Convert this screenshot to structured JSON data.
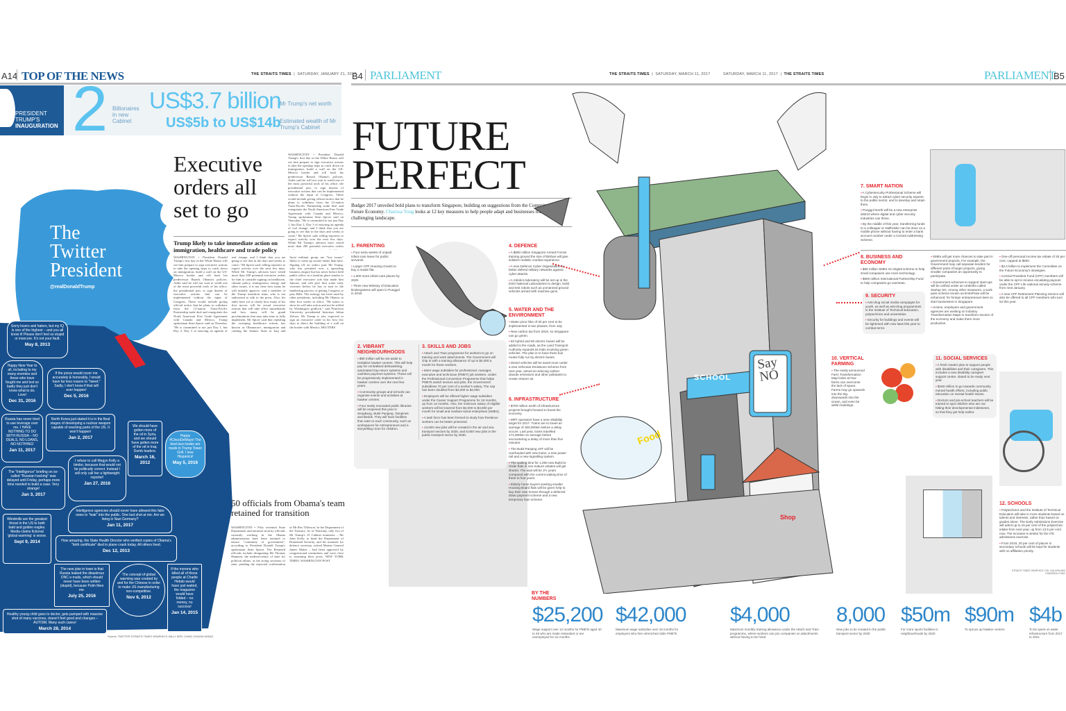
{
  "left_page": {
    "page_number": "A14",
    "section": "TOP OF THE NEWS",
    "paper": "THE STRAITS TIMES",
    "date": "SATURDAY, JANUARY 21, 2017",
    "banner": {
      "tag_line1": "PRESIDENT",
      "tag_line2": "TRUMP'S",
      "tag_line3": "INAUGURATION",
      "big_number": "2",
      "big_number_label": "Billionaires in new Cabinet",
      "stat1": "US$3.7 billion",
      "stat1_label": "Mr Trump's net worth",
      "stat2": "US$5b to US$14b",
      "stat2_label": "Estimated wealth of Mr Trump's Cabinet"
    },
    "graphic": {
      "title_line1": "The",
      "title_line2": "Twitter",
      "title_line3": "President",
      "handle": "@realDonaldTrump",
      "source": "Source: TWITTER  STRAITS TIMES GRAPHICS: BILLY KER, CHNG CHOON HIONG",
      "tweets": [
        {
          "text": "Sorry losers and haters, but my IQ is one of the highest – and you all know it! Please don't feel so stupid or insecure. It's not your fault.",
          "date": "May 8, 2013"
        },
        {
          "text": "Happy New Year to all, including to my many enemies and those who have fought me and lost so badly they just don't know what to do. Love!",
          "date": "Dec 31, 2016"
        },
        {
          "text": "If the press would cover me accurately & honorably, I would have far less reason to \"tweet.\" Sadly, I don't know if that will ever happen!",
          "date": "Dec 5, 2016"
        },
        {
          "text": "Russia has never tried to use leverage over me. I HAVE NOTHING TO DO WITH RUSSIA – NO DEALS, NO LOANS, NO NOTHING!",
          "date": "Jan 11, 2017"
        },
        {
          "text": "North Korea just stated it is in the final stages of developing a nuclear weapon capable of reaching parts of the US. It won't happen!",
          "date": "Jan 2, 2017"
        },
        {
          "text": "We should have gotten more of the oil in Syria, and we should have gotten more of the oil in Iraq. Dumb leaders.",
          "date": "March 16, 2012"
        },
        {
          "text": "Happy #CincoDeMayo! The best taco bowls are made in Trump Tower Grill. I love Hispanics!",
          "date": "May 5, 2016"
        },
        {
          "text": "I refuse to call Megyn Kelly a bimbo, because that would not be politically correct. Instead I will only call her a lightweight reporter!",
          "date": "Jan 27, 2016"
        },
        {
          "text": "The \"Intelligence\" briefing on so-called \"Russian hacking\" was delayed until Friday, perhaps more time needed to build a case. Very strange!",
          "date": "Jan 3, 2017"
        },
        {
          "text": "Intelligence agencies should never have allowed this fake news to \"leak\" into the public. One last shot at me. Are we living in Nazi Germany?",
          "date": "Jan 11, 2017"
        },
        {
          "text": "How amazing, the State Health Director who verified copies of Obama's \"birth certificate\" died in plane crash today. All others lived.",
          "date": "Dec 12, 2013"
        },
        {
          "text": "Windmills are the greatest threat in the US to both bald and golden eagles. Media claims fictional 'global warming' is worse.",
          "date": "Sept 9, 2014"
        },
        {
          "text": "The new joke in town is that Russia leaked the disastrous DNC e-mails, which should never have been written (stupid), because Putin likes me.",
          "date": "July 25, 2016"
        },
        {
          "text": "The concept of global warming was created by and for the Chinese in order to make US manufacturing non-competitive.",
          "date": "Nov 6, 2012"
        },
        {
          "text": "If the morons who killed all of those people at Charlie Hebdo would have just waited, the magazine would have folded – no money, no success!",
          "date": "Jan 14, 2015"
        },
        {
          "text": "Healthy young child goes to doctor, gets pumped with massive shot of many vaccines, doesn't feel good and changes – AUTISM. Many such cases!",
          "date": "March 28, 2014"
        }
      ]
    },
    "article1": {
      "headline": "Executive orders all set to go",
      "subhead": "Trump likely to take immediate action on immigration, healthcare and trade policy",
      "body": "WASHINGTON • President Donald Trump's first day in the White House will see him prepare to sign executive actions to take the opening steps to crack down on immigration, build a wall on the US-Mexico border and roll back his predecessor Barack Obama's policies. Aides said he will not wait to wield one of the most powerful tools of his office, the presidential pen, to sign dozens of executive actions that can be implemented without the input of Congress. These would include giving official notice that he plans to withdraw from the 12-nation Trans-Pacific Partnership trade deal and renegotiate the North American Free Trade Agreement with Canada and Mexico, Trump spokesman Sean Spicer said on Thursday. \"He is committed to not just Day 1, but Day 2, Day 3 of enacting an agenda of real change, and I think that you are going to see that in the days and weeks to come,\" Mr Spicer said, telling reporters to expect activity over the next few days. While Mr Trump's advisers have vetted more than 200 potential executive orders for him to consider signing on healthcare, climate policy, immigration, energy and other issues, it is not clear how many he will initially approve, said a member of the Trump transition team, who is not authorised to talk to the press. Also, his aides have yet to clarify how many of his first moves will be actual executive actions that will take effect immediately and how many will be grand proclamations that may take time to fully implement. Mr Spicer said that repealing the sweeping healthcare reform law known as Obamacare, immigration and curbing the Islamic State in Iraq and Syria militant group are \"key issues\" likely to come up sooner rather than later. Signing off on orders puts Mr Trump, who has presided over a sprawling business empire but has never before held public office, in a familiar place similar to the chief executive role that made him famous, and will give him some early victories before he has to turn to the hambering process of getting Congress to pass Bills. The strategy has been used by other presidents, including Mr Obama, in their first weeks in office. \"He wants to show he will take action and not be stifled by Washington gridlock,\" said Princeton University presidential historian Julian Zelizer. Mr Trump is also expected to sign an executive order in his first few days to direct the building of a wall on the border with Mexico. REUTERS"
    },
    "article2": {
      "headline": "50 officials from Obama's team retained for transition",
      "body": "WASHINGTON • Fifty essential State Department and national security officials currently working in the Obama administration have been retained to ensure \"continuity of government\", according to President Donald Trump's spokesman Sean Spicer. The Retained officials include designating Mr Thomas Shannon, the undersecretary of state for political affairs, as the acting secretary of state, pending the expected confirmation of Mr Rex Tillerson. In the Department of the Treasury. As of Thursday, only two of Mr Trump's 15 Cabinet nominees – Mr John Kelly, to head the Department of Homeland Security, and his nominee for defence secretary, retired Marine General James Mattis – had been approved by congressional committees and were close to assuming their posts. NEW YORK TIMES, WASHINGTON POST"
    }
  },
  "spread": {
    "left_folio": "B4",
    "right_folio": "B5",
    "section": "PARLIAMENT",
    "paper": "THE STRAITS TIMES",
    "date": "SATURDAY, MARCH 11, 2017",
    "headline_line1": "FUTURE",
    "headline_line2": "PERFECT",
    "standfirst_pre": "Budget 2017 unveiled bold plans to transform Singapore, building on suggestions from the Committee on the Future Economy.",
    "standfirst_author": "Charissa Yong",
    "standfirst_post": "looks at 12 key measures to help people adapt and businesses transform in a challenging landscape.",
    "illustration_signs": {
      "say_no": "Say NO",
      "food": "Food",
      "school": "SCHOOL",
      "shop": "Shop"
    },
    "credit": "STRAITS TIMES GRAPHICS: CEL GULAPA AND CHARISSA YONG",
    "sections": {
      "parenting": {
        "title": "1. PARENTING",
        "bullets": [
          "Four extra weeks of unpaid infant-care leave for public servants.",
          "Larger CPF Housing Grants to buy a resale flat.",
          "1,000 more infant-care places by 2020.",
          "Three new Ministry of Education kindergartens will open in Punggol in 2018."
        ]
      },
      "neighbourhoods": {
        "title": "2. VIBRANT NEIGHBOURHOODS",
        "bullets": [
          "$90 million will be set aside to revitalise hawker centres. This will help pay for centralised dishwashing, automated tray-return systems and cashless payment systems. These will be progressively implemented in hawker centres over the next few years.",
          "Community groups and schools can organise events and activities at hawker centres.",
          "Four newly renovated public libraries will be reopened this year in Sengkang, Bukit Panjang, Tampines and Bedok. They will have facilities that cater to each community, such as workspaces for entrepreneurs and a storytelling room for children."
        ]
      },
      "skills": {
        "title": "3. SKILLS AND JOBS",
        "bullets": [
          "Attach and Train programme for workers to go on training and work attachments. The Government will chip in with a training allowance of up to $4,000 a month for these workers.",
          "More wage subsidies for professional, manager, executive and technician (PMET) job seekers. Under the Professional Conversion Programme that helps PMETs switch sectors and jobs, the Government subsidises 70 per cent of a worker's salary. The cap has been doubled from $2,000 to $4,000.",
          "Employers will be offered higher wage subsidies under the Career Support Programme for 18 months, up from 12 months. Also, the minimum salary of eligible workers will be lowered from $4,000 to $3,600 per month for small and medium-sized enterprises (SMEs).",
          "A task force has been formed to study how freelance workers can be better protected.",
          "13,000 new jobs will be created in the air and sea transport sectors by 2025, and 8,000 new jobs in the public transport sector by 2030."
        ]
      },
      "defence": {
        "title": "4. DEFENCE",
        "bullets": [
          "A $900 million Singapore Armed Forces training ground the size of Bishan will give soldiers realistic combat experience.",
          "A new Defence Cyber Organisation to better defend military networks against cyber attacks.",
          "A robotics laboratory will be set up in the DSO National Laboratories to design, build and test robots such as unmanned ground vehicles armed with machine guns."
        ]
      },
      "water": {
        "title": "5. WATER AND THE ENVIRONMENT",
        "bullets": [
          "Water price hike of 30 per cent to be implemented in two phases, from July.",
          "New carbon tax from 2019, so Singapore can go green.",
          "50 hybrid and 60 electric buses will be added to the roads, as the Land Transport Authority expands its trials involving green vehicles. The plan is to have three bus routes fully run by electric buses.",
          "Diesel vehicles will be taxed more under a new Vehicular Emissions Scheme from next year, aimed at reducing carbon dioxide emissions and other pollutants to create cleaner air."
        ]
      },
      "infrastructure": {
        "title": "6. INFRASTRUCTURE",
        "bullets": [
          "$700 million worth of infrastructure projects brought forward to boost the economy.",
          "MRT operators have a new reliability target for 2017. Trains are to travel an average of 300,000km before a delay occurs. Last year, trains travelled 174,000km on average before encountering a delay of more than five minutes.",
          "The Bukit Panjang LRT will be overhauled with new trains, a new power rail and a new signalling system.",
          "The waiting time for 1,000 new Build-to-Order flats in non-mature estates will get shorter. The wait will be 2½ years compared with the current waiting time of three to four years.",
          "Elderly home buyers seeking smaller Housing Board flats will be given help to buy their new homes through a deferred down payment scheme and a new temporary loan scheme."
        ]
      },
      "smart_nation": {
        "title": "7. SMART NATION",
        "bullets": [
          "A Cybersecurity Professional Scheme will begin in July to attract cyber security experts to the public sector, and to develop and retain them.",
          "Punggol North will be a new enterprise district where digital and cyber security industries can thrive.",
          "By the middle of this year, transferring funds to a colleague or stallholder can be done on a mobile phone without having to enter a bank account number under a Central Addressing Scheme."
        ]
      },
      "business": {
        "title": "8. BUSINESS AND ECONOMY",
        "bullets": [
          "$80 million SMEs Go Digital scheme to help small companies use more technology.",
          "$600 million International Partnership Fund to help companies go overseas."
        ],
        "bullets_col2": [
          "SMEs will get more chances to take part in government projects. For example, the Government may call separate tenders for different parts of larger projects, giving smaller companies an opportunity to participate.",
          "Government schemes to support start-ups will be unified under an umbrella called Startup SG. Among other measures, a work pass scheme known as EntrePass will be enhanced, for foreign entrepreneurs keen to start businesses in Singapore.",
          "Unions, employers and government agencies are working on Industry Transformation Maps to transform sectors of the economy and make them more productive."
        ],
        "bullets_col3": [
          "One-off personal income tax rebate of 20 per cent, capped at $500.",
          "$2.4 billion to implement the Committee on the Future Economy's strategies.",
          "Central Provident Fund (CPF) members will be able to opt to receive escalating payouts under the CPF Life national annuity scheme from next January.",
          "A new CPF Retirement Planning Service will also be offered to all CPF members who turn 54 this year."
        ]
      },
      "security": {
        "title": "9. SECURITY",
        "bullets": [
          "Anti-drug social media campaigns for youth, as well as anti-drug programmes in the Institute of Technical Education, polytechnics and universities.",
          "Security for buildings and events will be tightened with new laws this year to combat terror."
        ]
      },
      "farming": {
        "title": "10. VERTICAL FARMING",
        "bullets": [
          "The newly announced Farm Transformation Map looks at how farms can overcome the lack of space. Farms may go upwards into the sky, downwards into the ocean, and even be within buildings."
        ]
      },
      "social": {
        "title": "11. SOCIAL SERVICES",
        "bullets": [
          "A fresh master plan to support people with disabilities and their caregivers. This includes a new disability caregiver support centre, slated to be ready next year.",
          "$160 million to go towards community mental health efforts, including public education on mental health issues.",
          "Doctors and pre-school teachers will be trained to spot children who are not hitting their developmental milestones, so that they get help earlier."
        ]
      },
      "schools": {
        "title": "12. SCHOOLS",
        "bullets": [
          "Polytechnics and the Institute of Technical Education will take in more students based on talents and interests, rather than based on grades alone. The Early Admissions Exercise will admit up to 15 per cent of the polytechnic intake from next year, up from 12.5 per cent now. The increase is similar for the ITE admissions exercise.",
          "From 2019, 20 per cent of places in secondary schools will be kept for students with no affiliation priority."
        ]
      }
    },
    "by_the_numbers": {
      "title_line1": "BY THE",
      "title_line2": "NUMBERS",
      "items": [
        {
          "value": "$25,200",
          "caption": "Wage support over 12 months for PMETs aged 40 to 49 who are made redundant or are unemployed for six months"
        },
        {
          "value": "$42,000",
          "caption": "Maximum wage subsidies over 18 months for employers who hire retrenched older PMETs"
        },
        {
          "value": "$4,000",
          "caption": "Maximum monthly training allowance under the Attach and Train programme, where workers can join companies on attachments without having to be hired"
        },
        {
          "value": "8,000",
          "caption": "New jobs to be created in the public transport sector by 2030"
        },
        {
          "value": "$50m",
          "caption": "For more sports facilities in neighbourhoods by 2020"
        },
        {
          "value": "$90m",
          "caption": "To spruce up hawker centres"
        },
        {
          "value": "$4b",
          "caption": "To be spent on water infrastructure from 2017 to 2021"
        }
      ]
    }
  },
  "colors": {
    "st_blue": "#1d5a96",
    "light_blue": "#5bc3ef",
    "twitter_blue": "#3a9ad9",
    "navy": "#174f8c",
    "accent_red": "#e4252b",
    "parliament_teal": "#4fc3d9",
    "numbers_blue": "#2d86c9"
  }
}
